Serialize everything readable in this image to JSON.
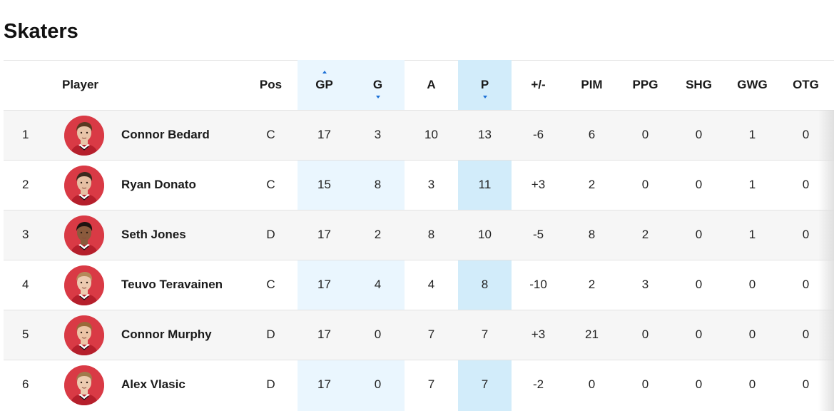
{
  "title": "Skaters",
  "colors": {
    "highlight_light": "#eaf6fe",
    "highlight_strong": "#d2ecfa",
    "sort_arrow": "#1a6fd6",
    "avatar_bg": "#d93a45"
  },
  "columns": {
    "player": "Player",
    "pos": "Pos",
    "gp": "GP",
    "g": "G",
    "a": "A",
    "p": "P",
    "pm": "+/-",
    "pim": "PIM",
    "ppg": "PPG",
    "shg": "SHG",
    "gwg": "GWG",
    "otg": "OTG"
  },
  "sort_indicators": {
    "gp": "sort-ascending-icon",
    "g": "sort-descending-icon",
    "p": "sort-descending-icon"
  },
  "rows": [
    {
      "rank": "1",
      "name": "Connor Bedard",
      "pos": "C",
      "gp": "17",
      "g": "3",
      "a": "10",
      "p": "13",
      "pm": "-6",
      "pim": "6",
      "ppg": "0",
      "shg": "0",
      "gwg": "1",
      "otg": "0",
      "skin": "#e8c4a8",
      "hair": "#5a3a22"
    },
    {
      "rank": "2",
      "name": "Ryan Donato",
      "pos": "C",
      "gp": "15",
      "g": "8",
      "a": "3",
      "p": "11",
      "pm": "+3",
      "pim": "2",
      "ppg": "0",
      "shg": "0",
      "gwg": "1",
      "otg": "0",
      "skin": "#e6bfa3",
      "hair": "#3b2a1e"
    },
    {
      "rank": "3",
      "name": "Seth Jones",
      "pos": "D",
      "gp": "17",
      "g": "2",
      "a": "8",
      "p": "10",
      "pm": "-5",
      "pim": "8",
      "ppg": "2",
      "shg": "0",
      "gwg": "1",
      "otg": "0",
      "skin": "#8a5a3c",
      "hair": "#1e1410"
    },
    {
      "rank": "4",
      "name": "Teuvo Teravainen",
      "pos": "C",
      "gp": "17",
      "g": "4",
      "a": "4",
      "p": "8",
      "pm": "-10",
      "pim": "2",
      "ppg": "3",
      "shg": "0",
      "gwg": "0",
      "otg": "0",
      "skin": "#eccab0",
      "hair": "#b58a5a"
    },
    {
      "rank": "5",
      "name": "Connor Murphy",
      "pos": "D",
      "gp": "17",
      "g": "0",
      "a": "7",
      "p": "7",
      "pm": "+3",
      "pim": "21",
      "ppg": "0",
      "shg": "0",
      "gwg": "0",
      "otg": "0",
      "skin": "#ecc4a6",
      "hair": "#9a6a3a"
    },
    {
      "rank": "6",
      "name": "Alex Vlasic",
      "pos": "D",
      "gp": "17",
      "g": "0",
      "a": "7",
      "p": "7",
      "pm": "-2",
      "pim": "0",
      "ppg": "0",
      "shg": "0",
      "gwg": "0",
      "otg": "0",
      "skin": "#eccbb0",
      "hair": "#a07a4c"
    }
  ]
}
